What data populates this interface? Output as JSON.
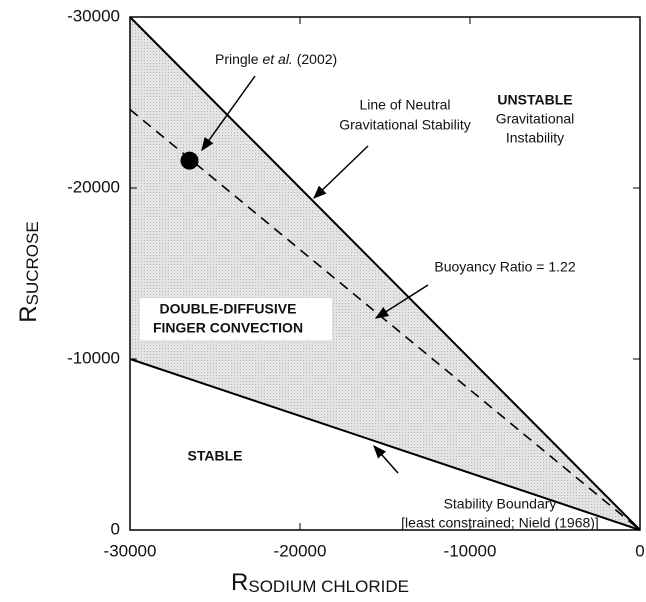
{
  "chart_data": {
    "type": "line",
    "xlabel": "R",
    "xlabel_sub": "SODIUM CHLORIDE",
    "ylabel": "R",
    "ylabel_sub": "SUCROSE",
    "xlim": [
      -30000,
      0
    ],
    "ylim": [
      0,
      -30000
    ],
    "xticks": [
      -30000,
      -20000,
      -10000,
      0
    ],
    "yticks": [
      0,
      -10000,
      -20000,
      -30000
    ],
    "series": [
      {
        "name": "Line of Neutral Gravitational Stability",
        "color": "#000000",
        "dash": false,
        "x": [
          -30000,
          0
        ],
        "values": [
          -30000,
          0
        ]
      },
      {
        "name": "Stability Boundary",
        "color": "#000000",
        "dash": false,
        "x": [
          -30000,
          0
        ],
        "values": [
          -10000,
          0
        ]
      },
      {
        "name": "Buoyancy Ratio = 1.22",
        "color": "#000000",
        "dash": true,
        "x": [
          -30000,
          0
        ],
        "values": [
          -24590,
          0
        ]
      }
    ],
    "points": {
      "x": [
        -26500
      ],
      "values": [
        -21600
      ],
      "color": "#000000"
    },
    "fill": "#d9d9d9",
    "annotations": {
      "pringle": [
        "Pringle ",
        "et al.",
        " (2002)"
      ],
      "unstable": [
        "UNSTABLE",
        "Gravitational",
        "Instability"
      ],
      "neutral": [
        "Line of Neutral",
        "Gravitational Stability"
      ],
      "buoyancy": "Buoyancy Ratio = 1.22",
      "ddc": [
        "DOUBLE-DIFFUSIVE",
        "FINGER CONVECTION"
      ],
      "stable": "STABLE",
      "boundary": [
        "Stability Boundary",
        "[least constrained; Nield (1968)]"
      ]
    }
  }
}
